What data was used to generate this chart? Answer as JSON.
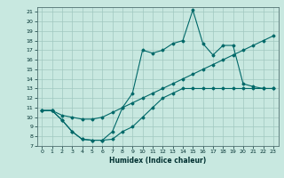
{
  "title": "",
  "xlabel": "Humidex (Indice chaleur)",
  "bg_color": "#c8e8e0",
  "line_color": "#006868",
  "grid_color": "#a0c8c0",
  "xlim": [
    -0.5,
    23.5
  ],
  "ylim": [
    7,
    21.5
  ],
  "yticks": [
    7,
    8,
    9,
    10,
    11,
    12,
    13,
    14,
    15,
    16,
    17,
    18,
    19,
    20,
    21
  ],
  "xticks": [
    0,
    1,
    2,
    3,
    4,
    5,
    6,
    7,
    8,
    9,
    10,
    11,
    12,
    13,
    14,
    15,
    16,
    17,
    18,
    19,
    20,
    21,
    22,
    23
  ],
  "curve_bottom_x": [
    0,
    1,
    2,
    3,
    4,
    5,
    6,
    7,
    8,
    9,
    10,
    11,
    12,
    13,
    14,
    15,
    16,
    17,
    18,
    19,
    20,
    21,
    22,
    23
  ],
  "curve_bottom_y": [
    10.7,
    10.7,
    9.7,
    8.5,
    7.7,
    7.6,
    7.6,
    7.7,
    8.5,
    9.0,
    10.0,
    11.0,
    12.0,
    12.5,
    13.0,
    13.0,
    13.0,
    13.0,
    13.0,
    13.0,
    13.0,
    13.0,
    13.0,
    13.0
  ],
  "curve_top_x": [
    0,
    1,
    2,
    3,
    4,
    5,
    6,
    7,
    8,
    9,
    10,
    11,
    12,
    13,
    14,
    15,
    16,
    17,
    18,
    19,
    20,
    21,
    22,
    23
  ],
  "curve_top_y": [
    10.7,
    10.7,
    9.7,
    8.5,
    7.7,
    7.6,
    7.6,
    8.5,
    11.0,
    12.5,
    17.0,
    16.7,
    17.0,
    17.7,
    18.0,
    21.2,
    17.7,
    16.5,
    17.5,
    17.5,
    13.5,
    13.2,
    13.0,
    13.0
  ],
  "curve_diag_x": [
    0,
    1,
    2,
    3,
    4,
    5,
    6,
    7,
    8,
    9,
    10,
    11,
    12,
    13,
    14,
    15,
    16,
    17,
    18,
    19,
    20,
    21,
    22,
    23
  ],
  "curve_diag_y": [
    10.7,
    10.7,
    10.2,
    10.0,
    9.8,
    9.8,
    10.0,
    10.5,
    11.0,
    11.5,
    12.0,
    12.5,
    13.0,
    13.5,
    14.0,
    14.5,
    15.0,
    15.5,
    16.0,
    16.5,
    17.0,
    17.5,
    18.0,
    18.5
  ]
}
